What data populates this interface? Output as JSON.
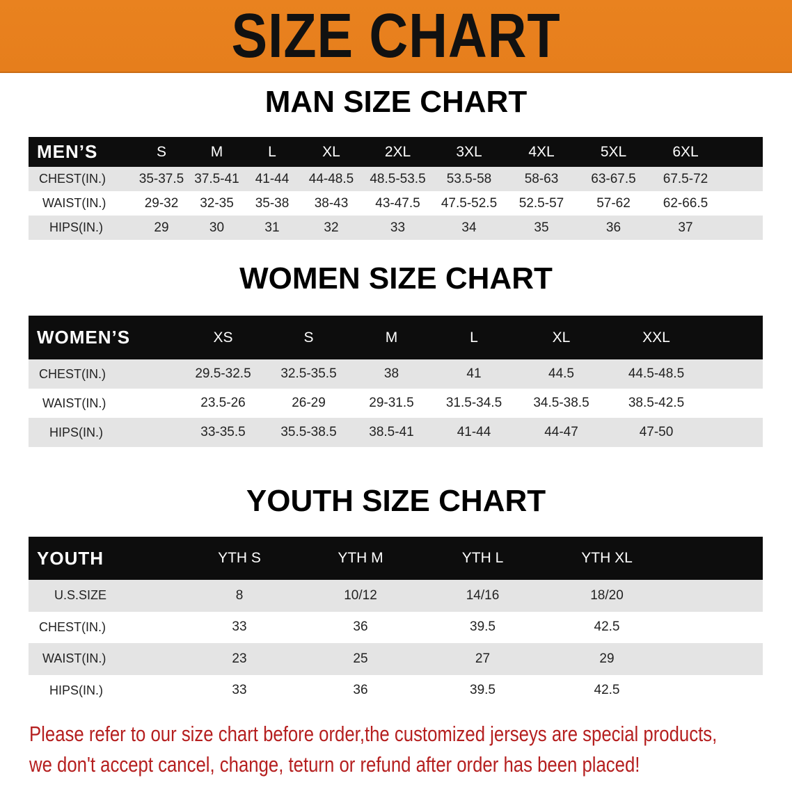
{
  "banner": {
    "title": "SIZE CHART",
    "color": "#e8801e"
  },
  "men": {
    "title": "MAN SIZE CHART",
    "header": "MEN’S",
    "sizes": [
      "S",
      "M",
      "L",
      "XL",
      "2XL",
      "3XL",
      "4XL",
      "5XL",
      "6XL"
    ],
    "rows": [
      {
        "label": "CHEST(IN.)",
        "values": [
          "35-37.5",
          "37.5-41",
          "41-44",
          "44-48.5",
          "48.5-53.5",
          "53.5-58",
          "58-63",
          "63-67.5",
          "67.5-72"
        ]
      },
      {
        "label": "WAIST(IN.)",
        "values": [
          "29-32",
          "32-35",
          "35-38",
          "38-43",
          "43-47.5",
          "47.5-52.5",
          "52.5-57",
          "57-62",
          "62-66.5"
        ]
      },
      {
        "label": "HIPS(IN.)",
        "values": [
          "29",
          "30",
          "31",
          "32",
          "33",
          "34",
          "35",
          "36",
          "37"
        ]
      }
    ]
  },
  "women": {
    "title": "WOMEN SIZE CHART",
    "header": "WOMEN’S",
    "sizes": [
      "XS",
      "S",
      "M",
      "L",
      "XL",
      "XXL"
    ],
    "rows": [
      {
        "label": "CHEST(IN.)",
        "values": [
          "29.5-32.5",
          "32.5-35.5",
          "38",
          "41",
          "44.5",
          "44.5-48.5"
        ]
      },
      {
        "label": "WAIST(IN.)",
        "values": [
          "23.5-26",
          "26-29",
          "29-31.5",
          "31.5-34.5",
          "34.5-38.5",
          "38.5-42.5"
        ]
      },
      {
        "label": "HIPS(IN.)",
        "values": [
          "33-35.5",
          "35.5-38.5",
          "38.5-41",
          "41-44",
          "44-47",
          "47-50"
        ]
      }
    ]
  },
  "youth": {
    "title": "YOUTH SIZE CHART",
    "header": "YOUTH",
    "sizes": [
      "YTH S",
      "YTH M",
      "YTH L",
      "YTH XL"
    ],
    "rows": [
      {
        "label": "U.S.SIZE",
        "values": [
          "8",
          "10/12",
          "14/16",
          "18/20"
        ]
      },
      {
        "label": "CHEST(IN.)",
        "values": [
          "33",
          "36",
          "39.5",
          "42.5"
        ]
      },
      {
        "label": "WAIST(IN.)",
        "values": [
          "23",
          "25",
          "27",
          "29"
        ]
      },
      {
        "label": "HIPS(IN.)",
        "values": [
          "33",
          "36",
          "39.5",
          "42.5"
        ]
      }
    ]
  },
  "footer": {
    "line1": "Please refer to our size chart before order,the customized jerseys are special products,",
    "line2": "we don't accept cancel, change, teturn or refund after order has been placed!",
    "color": "#b51f1f"
  }
}
